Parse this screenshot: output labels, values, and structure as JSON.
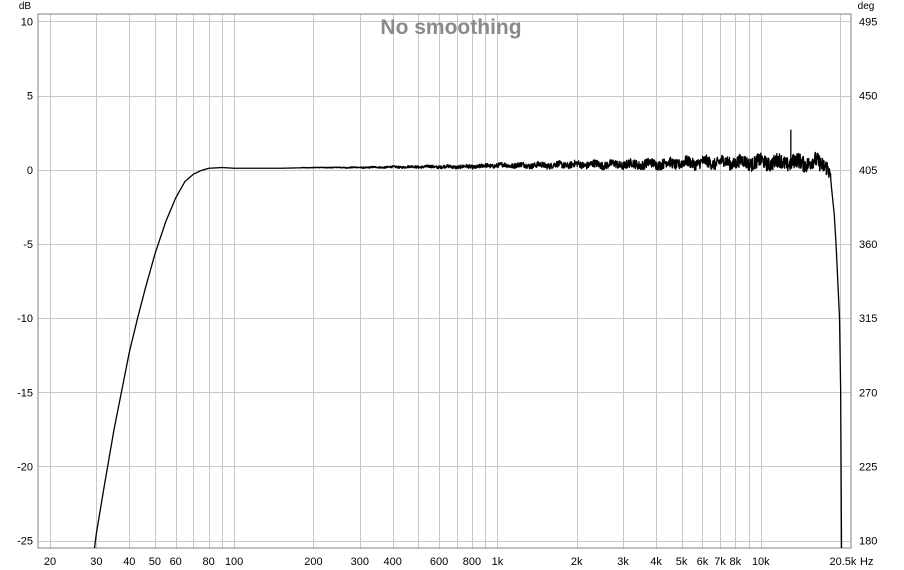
{
  "chart_data": {
    "type": "line",
    "title": "No smoothing",
    "xlabel": "Hz",
    "ylabel": "dB",
    "y2label": "deg",
    "x_scale": "log",
    "xlim": [
      18,
      22000
    ],
    "ylim": [
      -25.5,
      10.5
    ],
    "y2lim": [
      175.5,
      499.5
    ],
    "grid": true,
    "x_ticks": [
      {
        "value": 20,
        "label": "20"
      },
      {
        "value": 30,
        "label": "30"
      },
      {
        "value": 40,
        "label": "40"
      },
      {
        "value": 50,
        "label": "50"
      },
      {
        "value": 60,
        "label": "60"
      },
      {
        "value": 80,
        "label": "80"
      },
      {
        "value": 100,
        "label": "100"
      },
      {
        "value": 200,
        "label": "200"
      },
      {
        "value": 300,
        "label": "300"
      },
      {
        "value": 400,
        "label": "400"
      },
      {
        "value": 600,
        "label": "600"
      },
      {
        "value": 800,
        "label": "800"
      },
      {
        "value": 1000,
        "label": "1k"
      },
      {
        "value": 2000,
        "label": "2k"
      },
      {
        "value": 3000,
        "label": "3k"
      },
      {
        "value": 4000,
        "label": "4k"
      },
      {
        "value": 5000,
        "label": "5k"
      },
      {
        "value": 6000,
        "label": "6k"
      },
      {
        "value": 7000,
        "label": "7k"
      },
      {
        "value": 8000,
        "label": "8k"
      },
      {
        "value": 10000,
        "label": "10k"
      },
      {
        "value": 20500,
        "label": "20.5k"
      }
    ],
    "y_ticks": [
      10,
      5,
      0,
      -5,
      -10,
      -15,
      -20,
      -25
    ],
    "y2_ticks": [
      495,
      450,
      405,
      360,
      315,
      270,
      225,
      180
    ],
    "series": [
      {
        "x": [
          29.5,
          30,
          32,
          35,
          38,
          40,
          43,
          46,
          50,
          55,
          60,
          65,
          70,
          75,
          80,
          90,
          100,
          120,
          150,
          200,
          300,
          500,
          800,
          1000,
          1500,
          2000,
          3000,
          4000,
          5000,
          7000,
          10000,
          13000,
          16000,
          17500,
          18000,
          18500,
          19000,
          19300,
          19600,
          19900,
          20100,
          20200,
          20250
        ],
        "y": [
          -25.5,
          -24.5,
          -21.5,
          -17.5,
          -14.3,
          -12.3,
          -10.0,
          -8.0,
          -5.7,
          -3.5,
          -1.9,
          -0.8,
          -0.3,
          -0.05,
          0.1,
          0.15,
          0.1,
          0.1,
          0.1,
          0.15,
          0.15,
          0.2,
          0.2,
          0.3,
          0.3,
          0.35,
          0.35,
          0.4,
          0.45,
          0.5,
          0.5,
          0.5,
          0.5,
          0.4,
          0.2,
          -1.0,
          -3.0,
          -5.0,
          -7.5,
          -10.0,
          -15.0,
          -22.0,
          -25.5
        ]
      }
    ]
  }
}
